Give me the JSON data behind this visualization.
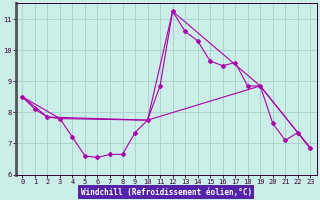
{
  "xlabel": "Windchill (Refroidissement éolien,°C)",
  "background_color": "#cceee8",
  "grid_color": "#aad4cc",
  "line_color": "#aa00aa",
  "xlabel_bg": "#6633aa",
  "xlabel_fg": "#ffffff",
  "xlim": [
    -0.5,
    23.5
  ],
  "ylim": [
    6,
    11.5
  ],
  "yticks": [
    6,
    7,
    8,
    9,
    10,
    11
  ],
  "xticks": [
    0,
    1,
    2,
    3,
    4,
    5,
    6,
    7,
    8,
    9,
    10,
    11,
    12,
    13,
    14,
    15,
    16,
    17,
    18,
    19,
    20,
    21,
    22,
    23
  ],
  "series_main": [
    [
      0.0,
      8.5
    ],
    [
      1.0,
      8.1
    ],
    [
      2.0,
      7.85
    ],
    [
      3.0,
      7.8
    ],
    [
      4.0,
      7.2
    ],
    [
      5.0,
      6.6
    ],
    [
      6.0,
      6.55
    ],
    [
      7.0,
      6.65
    ],
    [
      8.0,
      6.65
    ],
    [
      9.0,
      7.35
    ],
    [
      10.0,
      7.75
    ],
    [
      11.0,
      8.85
    ],
    [
      12.0,
      11.25
    ],
    [
      13.0,
      10.6
    ],
    [
      14.0,
      10.3
    ],
    [
      15.0,
      9.65
    ],
    [
      16.0,
      9.5
    ],
    [
      17.0,
      9.6
    ],
    [
      18.0,
      8.85
    ],
    [
      19.0,
      8.85
    ],
    [
      20.0,
      7.65
    ],
    [
      21.0,
      7.1
    ],
    [
      22.0,
      7.35
    ],
    [
      23.0,
      6.85
    ]
  ],
  "series_line1": [
    [
      0.0,
      8.5
    ],
    [
      2.0,
      7.85
    ],
    [
      10.0,
      7.75
    ],
    [
      12.0,
      11.25
    ],
    [
      19.0,
      8.85
    ],
    [
      23.0,
      6.85
    ]
  ],
  "series_line2": [
    [
      0.0,
      8.5
    ],
    [
      3.0,
      7.8
    ],
    [
      10.0,
      7.75
    ],
    [
      19.0,
      8.85
    ],
    [
      23.0,
      6.85
    ]
  ]
}
